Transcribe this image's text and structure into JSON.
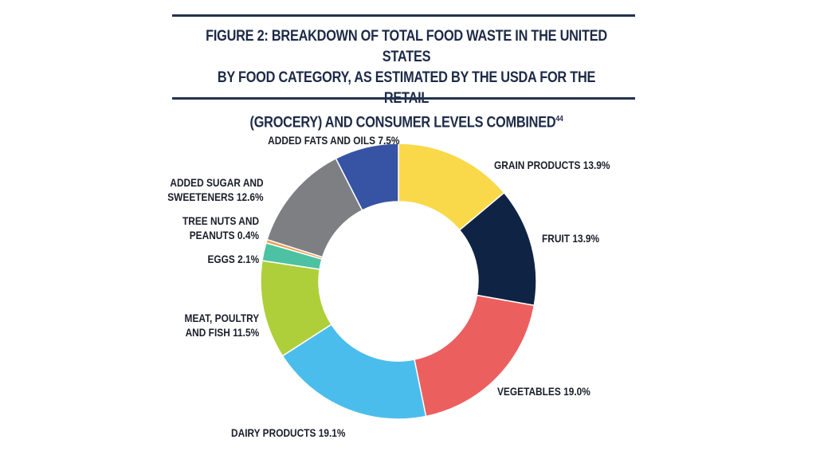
{
  "chart_data": {
    "type": "pie",
    "donut": true,
    "title_lines": [
      "FIGURE 2: BREAKDOWN OF TOTAL FOOD WASTE IN THE UNITED STATES",
      "BY FOOD CATEGORY, AS ESTIMATED BY THE USDA FOR THE RETAIL",
      "(GROCERY) AND CONSUMER LEVELS COMBINED"
    ],
    "title_footnote": "44",
    "unit": "%",
    "slices": [
      {
        "name": "GRAIN PRODUCTS",
        "value": 13.9,
        "label": "GRAIN PRODUCTS 13.9%",
        "color": "#F9D949"
      },
      {
        "name": "FRUIT",
        "value": 13.9,
        "label": "FRUIT 13.9%",
        "color": "#0F2445"
      },
      {
        "name": "VEGETABLES",
        "value": 19.0,
        "label": "VEGETABLES 19.0%",
        "color": "#EC5F5F"
      },
      {
        "name": "DAIRY PRODUCTS",
        "value": 19.1,
        "label": "DAIRY PRODUCTS 19.1%",
        "color": "#4BBDEC"
      },
      {
        "name": "MEAT, POULTRY AND FISH",
        "value": 11.5,
        "label": "MEAT, POULTRY|AND FISH 11.5%",
        "color": "#AECF3A"
      },
      {
        "name": "EGGS",
        "value": 2.1,
        "label": "EGGS 2.1%",
        "color": "#4CC2A2"
      },
      {
        "name": "TREE NUTS AND PEANUTS",
        "value": 0.4,
        "label": "TREE NUTS AND|PEANUTS 0.4%",
        "color": "#F0A050"
      },
      {
        "name": "ADDED SUGAR AND SWEETENERS",
        "value": 12.6,
        "label": "ADDED SUGAR AND|SWEETENERS 12.6%",
        "color": "#7D7F83"
      },
      {
        "name": "ADDED FATS AND OILS",
        "value": 7.5,
        "label": "ADDED FATS AND OILS 7.5%",
        "color": "#3753A4"
      }
    ]
  }
}
